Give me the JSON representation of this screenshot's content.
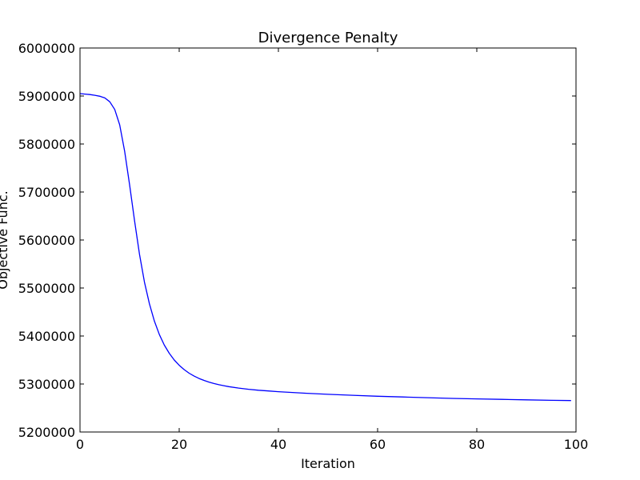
{
  "chart_data": {
    "type": "line",
    "title": "Divergence Penalty",
    "xlabel": "Iteration",
    "ylabel": "Objective Func.",
    "xlim": [
      0,
      100
    ],
    "ylim": [
      5200000,
      6000000
    ],
    "xticks": [
      0,
      20,
      40,
      60,
      80,
      100
    ],
    "yticks": [
      5200000,
      5300000,
      5400000,
      5500000,
      5600000,
      5700000,
      5800000,
      5900000,
      6000000
    ],
    "grid": false,
    "series": [
      {
        "color": "#0000ff",
        "x": [
          0,
          1,
          2,
          3,
          4,
          5,
          6,
          7,
          8,
          9,
          10,
          11,
          12,
          13,
          14,
          15,
          16,
          17,
          18,
          19,
          20,
          21,
          22,
          23,
          24,
          25,
          26,
          27,
          28,
          29,
          30,
          32,
          34,
          36,
          38,
          40,
          45,
          50,
          55,
          60,
          65,
          70,
          75,
          80,
          85,
          90,
          95,
          99
        ],
        "y": [
          5905000,
          5904000,
          5903000,
          5901500,
          5899500,
          5896000,
          5888000,
          5872000,
          5840000,
          5785000,
          5715000,
          5640000,
          5570000,
          5512000,
          5467000,
          5431000,
          5403000,
          5381000,
          5364000,
          5350000,
          5339000,
          5330000,
          5322500,
          5316500,
          5311500,
          5307500,
          5304000,
          5301000,
          5298500,
          5296500,
          5294500,
          5291500,
          5289000,
          5287000,
          5285500,
          5284000,
          5281000,
          5278500,
          5276500,
          5274500,
          5273000,
          5271500,
          5270000,
          5269000,
          5268000,
          5267000,
          5266000,
          5265500
        ]
      }
    ]
  }
}
